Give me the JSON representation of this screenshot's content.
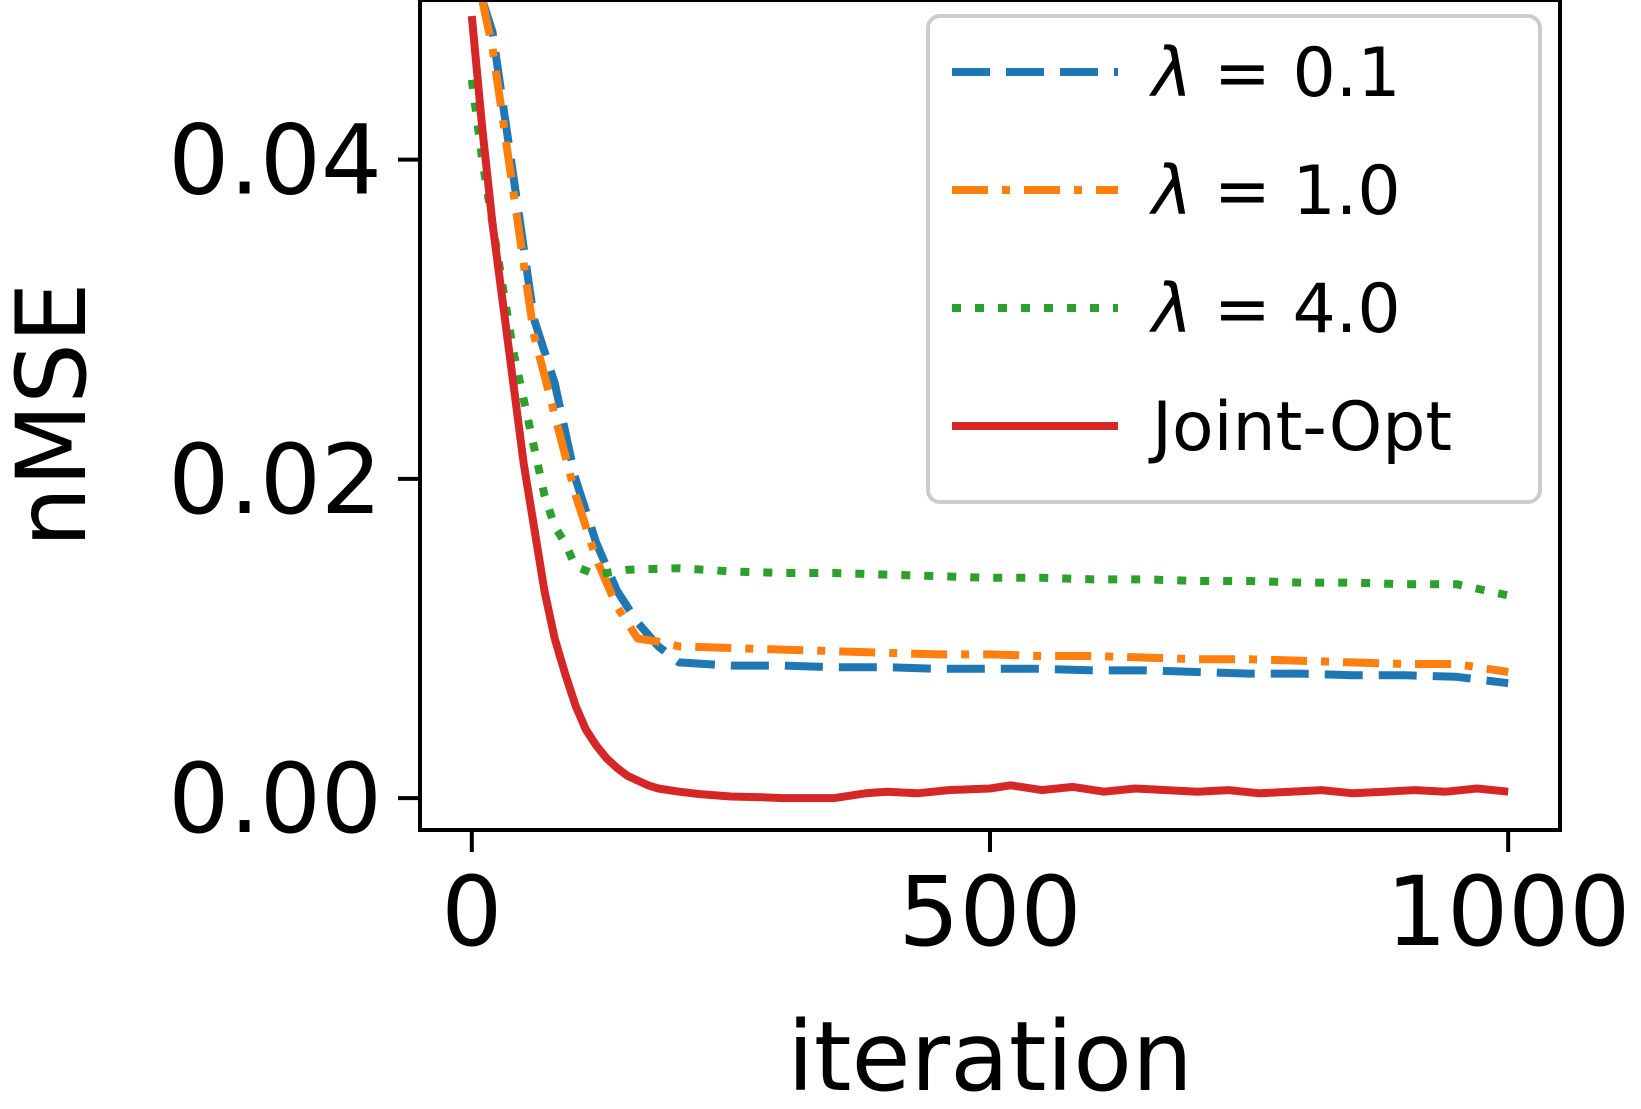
{
  "chart_data": {
    "type": "line",
    "title": "",
    "xlabel": "iteration",
    "ylabel": "nMSE",
    "xlim": [
      -50,
      1050
    ],
    "ylim": [
      -0.002,
      0.05
    ],
    "xticks": [
      0,
      500,
      1000
    ],
    "xtick_labels": [
      "0",
      "500",
      "1000"
    ],
    "yticks": [
      0.0,
      0.02,
      0.04
    ],
    "ytick_labels": [
      "0.00",
      "0.02",
      "0.04"
    ],
    "grid": false,
    "legend_position": "upper right",
    "series": [
      {
        "name": "λ = 0.1",
        "name_parts": [
          "λ",
          " = 0.1"
        ],
        "color": "#1f77b4",
        "style": "dashed",
        "x": [
          10,
          20,
          40,
          60,
          80,
          100,
          120,
          140,
          160,
          180,
          200,
          250,
          300,
          350,
          400,
          450,
          500,
          550,
          600,
          650,
          700,
          750,
          800,
          850,
          900,
          950,
          1000
        ],
        "y": [
          0.05,
          0.048,
          0.039,
          0.03,
          0.026,
          0.02,
          0.016,
          0.013,
          0.011,
          0.0095,
          0.0085,
          0.0083,
          0.0083,
          0.0082,
          0.0082,
          0.0081,
          0.0081,
          0.0081,
          0.008,
          0.008,
          0.0079,
          0.0078,
          0.0078,
          0.0077,
          0.0077,
          0.0076,
          0.0072
        ]
      },
      {
        "name": "λ = 1.0",
        "name_parts": [
          "λ",
          " = 1.0"
        ],
        "color": "#ff7f0e",
        "style": "dashdot",
        "x": [
          10,
          20,
          40,
          60,
          80,
          100,
          120,
          140,
          160,
          180,
          200,
          250,
          300,
          350,
          400,
          450,
          500,
          550,
          600,
          650,
          700,
          750,
          800,
          850,
          900,
          950,
          1000
        ],
        "y": [
          0.05,
          0.047,
          0.038,
          0.029,
          0.024,
          0.019,
          0.015,
          0.012,
          0.01,
          0.0098,
          0.0095,
          0.0094,
          0.0093,
          0.0092,
          0.0091,
          0.009,
          0.009,
          0.0089,
          0.0089,
          0.0088,
          0.0087,
          0.0087,
          0.0086,
          0.0085,
          0.0084,
          0.0084,
          0.0079
        ]
      },
      {
        "name": "λ = 4.0",
        "name_parts": [
          "λ",
          " = 4.0"
        ],
        "color": "#2ca02c",
        "style": "dotted",
        "x": [
          0,
          10,
          20,
          30,
          40,
          50,
          60,
          70,
          80,
          90,
          100,
          120,
          150,
          200,
          250,
          300,
          350,
          400,
          450,
          500,
          550,
          600,
          650,
          700,
          750,
          800,
          850,
          900,
          950,
          1000
        ],
        "y": [
          0.045,
          0.04,
          0.036,
          0.032,
          0.028,
          0.025,
          0.022,
          0.019,
          0.017,
          0.016,
          0.0145,
          0.014,
          0.0143,
          0.0144,
          0.0142,
          0.0141,
          0.0141,
          0.014,
          0.0139,
          0.0138,
          0.0138,
          0.0137,
          0.0137,
          0.0136,
          0.0136,
          0.0135,
          0.0135,
          0.0134,
          0.0134,
          0.0127
        ]
      },
      {
        "name": "Joint-Opt",
        "name_parts": [
          "",
          "Joint-Opt"
        ],
        "color": "#d62728",
        "style": "solid",
        "x": [
          0,
          10,
          20,
          30,
          40,
          50,
          60,
          70,
          80,
          90,
          100,
          110,
          120,
          130,
          140,
          150,
          160,
          170,
          180,
          200,
          220,
          250,
          280,
          300,
          320,
          350,
          380,
          400,
          430,
          460,
          500,
          520,
          550,
          580,
          610,
          640,
          670,
          700,
          730,
          760,
          790,
          820,
          850,
          880,
          910,
          940,
          970,
          1000
        ],
        "y": [
          0.049,
          0.042,
          0.036,
          0.031,
          0.026,
          0.021,
          0.017,
          0.013,
          0.01,
          0.0078,
          0.0058,
          0.0043,
          0.0033,
          0.0025,
          0.0019,
          0.0014,
          0.0011,
          0.0008,
          0.0006,
          0.0004,
          0.00025,
          0.0001,
          5e-05,
          0.0,
          0.0,
          0.0,
          0.0003,
          0.0004,
          0.0003,
          0.0005,
          0.0006,
          0.0008,
          0.0005,
          0.0007,
          0.0004,
          0.0006,
          0.0005,
          0.0004,
          0.0005,
          0.0003,
          0.0004,
          0.0005,
          0.0003,
          0.0004,
          0.0005,
          0.0004,
          0.0006,
          0.0004
        ]
      }
    ]
  }
}
